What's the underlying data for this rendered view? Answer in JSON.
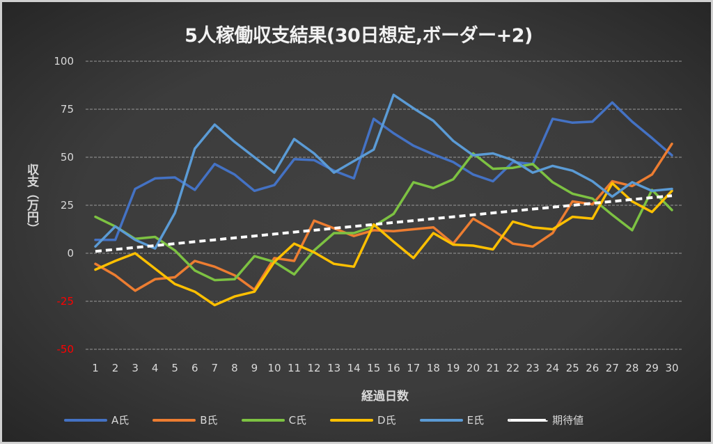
{
  "chart_data": {
    "type": "line",
    "title": "5人稼働収支結果(30日想定,ボーダー+2)",
    "xlabel": "経過日数",
    "ylabel": "収支（万円）",
    "ylim": [
      -50,
      100
    ],
    "yticks": [
      100,
      75,
      50,
      25,
      0,
      -25,
      -50
    ],
    "yticks_negative_color": "#ff0000",
    "grid": true,
    "legend_position": "bottom",
    "x": [
      1,
      2,
      3,
      4,
      5,
      6,
      7,
      8,
      9,
      10,
      11,
      12,
      13,
      14,
      15,
      16,
      17,
      18,
      19,
      20,
      21,
      22,
      23,
      24,
      25,
      26,
      27,
      28,
      29,
      30
    ],
    "series": [
      {
        "name": "A氏",
        "color": "#4472C4",
        "dashed": false,
        "values": [
          7,
          7,
          33.5,
          39,
          39.5,
          33,
          46.5,
          41,
          32.5,
          35.5,
          49,
          48.5,
          43,
          39,
          70,
          62.5,
          56,
          51.5,
          47.5,
          41,
          37.5,
          47.5,
          46.5,
          70,
          68,
          68.5,
          78.5,
          68.5,
          60,
          51
        ]
      },
      {
        "name": "B氏",
        "color": "#ED7D31",
        "dashed": false,
        "values": [
          -5.5,
          -11.5,
          -19.5,
          -13.5,
          -12.5,
          -4,
          -7,
          -11.5,
          -19,
          -2.5,
          -4,
          17,
          13,
          9,
          12,
          11.5,
          12.5,
          13.5,
          5,
          18,
          12,
          5,
          3.5,
          10.5,
          27,
          25.5,
          37.5,
          35,
          41,
          57
        ]
      },
      {
        "name": "C氏",
        "color": "#7DC242",
        "dashed": false,
        "values": [
          19,
          14,
          7.5,
          8.5,
          1.5,
          -9,
          -14,
          -13.5,
          -1.5,
          -4.5,
          -11,
          1.5,
          10.5,
          10.5,
          14,
          20.5,
          37,
          34,
          38.5,
          52,
          44,
          44.5,
          46.5,
          37,
          31,
          28.5,
          20,
          12,
          33,
          22.5
        ]
      },
      {
        "name": "D氏",
        "color": "#FFC000",
        "dashed": false,
        "values": [
          -8.5,
          -4,
          0,
          -8,
          -16,
          -20,
          -27,
          -22.5,
          -20,
          -4.5,
          5,
          0.5,
          -5.5,
          -7,
          15,
          6,
          -2.5,
          10.5,
          4.5,
          4,
          2,
          16.5,
          13.5,
          12.5,
          19,
          18,
          36.5,
          27,
          21.5,
          32.5
        ]
      },
      {
        "name": "E氏",
        "color": "#5B9BD5",
        "dashed": false,
        "values": [
          3.5,
          14,
          7,
          2.5,
          21,
          54.5,
          67,
          58,
          50,
          42,
          59.5,
          52,
          42,
          48,
          54,
          82.5,
          75.5,
          69,
          58.5,
          51,
          52,
          48.5,
          42,
          45.5,
          43,
          37.5,
          29.5,
          37,
          32.5,
          33.5
        ]
      },
      {
        "name": "期待値",
        "color": "#FFFFFF",
        "dashed": true,
        "values": [
          1,
          2,
          3,
          4,
          5,
          6,
          7,
          8,
          9,
          10,
          11,
          12,
          13,
          14,
          15,
          16,
          17,
          18,
          19,
          20,
          21,
          22,
          23,
          24,
          25,
          26,
          27,
          28,
          29,
          30
        ]
      }
    ]
  }
}
